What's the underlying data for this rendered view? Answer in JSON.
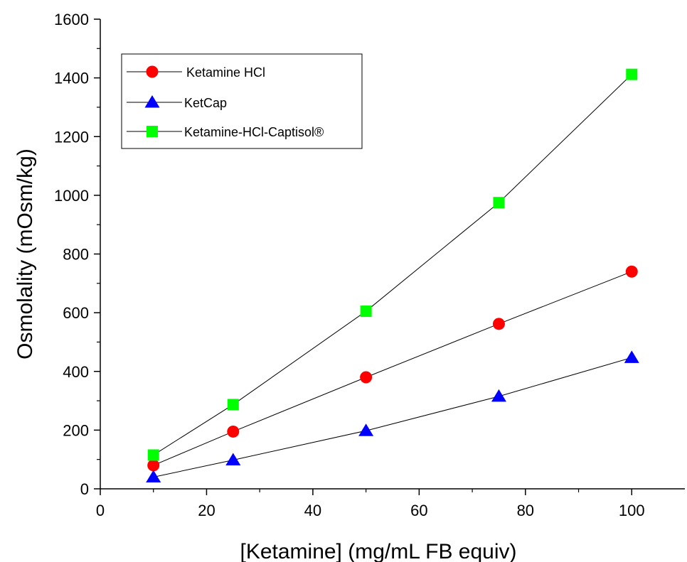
{
  "chart_data": {
    "type": "line",
    "xlabel": "[Ketamine] (mg/mL FB equiv)",
    "ylabel": "Osmolality (mOsm/kg)",
    "xlim": [
      0,
      110
    ],
    "ylim": [
      0,
      1600
    ],
    "x_ticks": [
      "0",
      "20",
      "40",
      "60",
      "80",
      "100"
    ],
    "x_tick_values": [
      0,
      20,
      40,
      60,
      80,
      100
    ],
    "y_ticks": [
      "0",
      "200",
      "400",
      "600",
      "800",
      "1000",
      "1200",
      "1400",
      "1600"
    ],
    "y_tick_values": [
      0,
      200,
      400,
      600,
      800,
      1000,
      1200,
      1400,
      1600
    ],
    "grid": false,
    "legend_position": "top-left",
    "x": [
      10,
      25,
      50,
      75,
      100
    ],
    "series": [
      {
        "name": "Ketamine HCl",
        "values": [
          80,
          195,
          380,
          562,
          740
        ],
        "marker": "circle",
        "color": "#ff0000"
      },
      {
        "name": "KetCap",
        "values": [
          40,
          98,
          198,
          315,
          447
        ],
        "marker": "triangle",
        "color": "#0000ff"
      },
      {
        "name": "Ketamine-HCl-Captisol®",
        "values": [
          115,
          287,
          605,
          975,
          1412
        ],
        "marker": "square",
        "color": "#00ff00"
      }
    ]
  }
}
